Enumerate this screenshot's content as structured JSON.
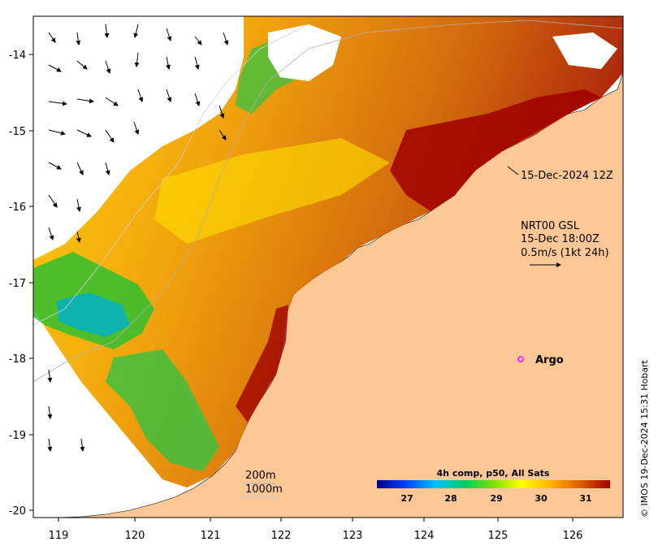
{
  "axes": {
    "x_ticks": [
      "119",
      "120",
      "121",
      "122",
      "123",
      "124",
      "125",
      "126"
    ],
    "y_ticks": [
      "-14",
      "-15",
      "-16",
      "-17",
      "-18",
      "-19",
      "-20"
    ]
  },
  "annotations": {
    "time_label": "15-Dec-2024 12Z",
    "current_source": "NRT00 GSL",
    "current_time": "15-Dec 18:00Z",
    "current_scale": "0.5m/s (1kt 24h)",
    "argo_label": "Argo",
    "contour_200": "200m",
    "contour_1000": "1000m"
  },
  "colorbar": {
    "title": "4h comp, p50, All Sats",
    "ticks": [
      "27",
      "28",
      "29",
      "30",
      "31"
    ],
    "colors": [
      "#00008b",
      "#0040ff",
      "#00c0ff",
      "#00d060",
      "#80e000",
      "#ffff00",
      "#ffb000",
      "#e06000",
      "#a00000"
    ]
  },
  "credit": "© IMOS 19-Dec-2024 15:31 Hobart",
  "colors": {
    "land": "#fdc896",
    "ocean_warm": "#e8a000",
    "ocean_hot": "#a00000",
    "argo_marker": "#ff00ff"
  }
}
